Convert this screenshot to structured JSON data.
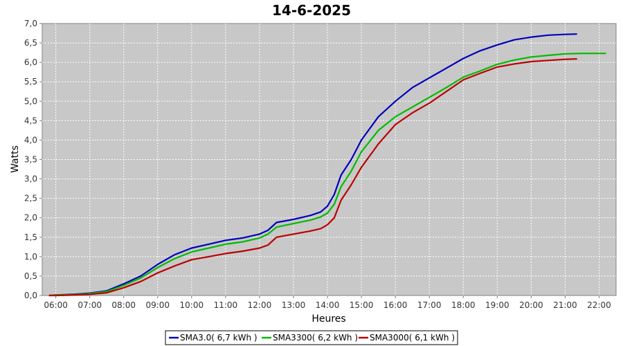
{
  "chart_data": {
    "type": "line",
    "title": "14-6-2025",
    "xlabel": "Heures",
    "ylabel": "Watts",
    "xlim": [
      5.6,
      22.5
    ],
    "ylim": [
      0,
      7
    ],
    "grid": true,
    "legend_position": "bottom",
    "x_ticks": [
      "06:00",
      "07:00",
      "08:00",
      "09:00",
      "10:00",
      "11:00",
      "12:00",
      "13:00",
      "14:00",
      "15:00",
      "16:00",
      "17:00",
      "18:00",
      "19:00",
      "20:00",
      "21:00",
      "22:00"
    ],
    "y_ticks": [
      "0,0",
      "0,5",
      "1,0",
      "1,5",
      "2,0",
      "2,5",
      "3,0",
      "3,5",
      "4,0",
      "4,5",
      "5,0",
      "5,5",
      "6,0",
      "6,5",
      "7,0"
    ],
    "series": [
      {
        "name": "SMA3.0( 6,7 kWh )",
        "color": "#0000bb",
        "points": [
          [
            5.8,
            0.0
          ],
          [
            6.0,
            0.01
          ],
          [
            6.5,
            0.03
          ],
          [
            7.0,
            0.06
          ],
          [
            7.5,
            0.12
          ],
          [
            8.0,
            0.3
          ],
          [
            8.5,
            0.5
          ],
          [
            9.0,
            0.8
          ],
          [
            9.5,
            1.05
          ],
          [
            10.0,
            1.22
          ],
          [
            10.5,
            1.32
          ],
          [
            11.0,
            1.42
          ],
          [
            11.5,
            1.48
          ],
          [
            12.0,
            1.58
          ],
          [
            12.25,
            1.68
          ],
          [
            12.5,
            1.88
          ],
          [
            13.0,
            1.96
          ],
          [
            13.5,
            2.06
          ],
          [
            13.8,
            2.15
          ],
          [
            14.0,
            2.3
          ],
          [
            14.2,
            2.6
          ],
          [
            14.4,
            3.1
          ],
          [
            14.7,
            3.5
          ],
          [
            15.0,
            4.0
          ],
          [
            15.5,
            4.6
          ],
          [
            16.0,
            5.0
          ],
          [
            16.5,
            5.35
          ],
          [
            17.0,
            5.6
          ],
          [
            17.5,
            5.85
          ],
          [
            18.0,
            6.1
          ],
          [
            18.5,
            6.3
          ],
          [
            19.0,
            6.45
          ],
          [
            19.5,
            6.58
          ],
          [
            20.0,
            6.65
          ],
          [
            20.5,
            6.7
          ],
          [
            21.0,
            6.72
          ],
          [
            21.35,
            6.73
          ]
        ]
      },
      {
        "name": "SMA3300( 6,2 kWh )",
        "color": "#00bb00",
        "points": [
          [
            5.8,
            0.0
          ],
          [
            6.0,
            0.01
          ],
          [
            6.5,
            0.02
          ],
          [
            7.0,
            0.05
          ],
          [
            7.5,
            0.1
          ],
          [
            8.0,
            0.26
          ],
          [
            8.5,
            0.45
          ],
          [
            9.0,
            0.72
          ],
          [
            9.5,
            0.95
          ],
          [
            10.0,
            1.12
          ],
          [
            10.5,
            1.22
          ],
          [
            11.0,
            1.32
          ],
          [
            11.5,
            1.38
          ],
          [
            12.0,
            1.48
          ],
          [
            12.25,
            1.58
          ],
          [
            12.5,
            1.76
          ],
          [
            13.0,
            1.85
          ],
          [
            13.5,
            1.94
          ],
          [
            13.8,
            2.02
          ],
          [
            14.0,
            2.12
          ],
          [
            14.2,
            2.35
          ],
          [
            14.4,
            2.8
          ],
          [
            14.7,
            3.2
          ],
          [
            15.0,
            3.7
          ],
          [
            15.5,
            4.25
          ],
          [
            16.0,
            4.6
          ],
          [
            16.5,
            4.85
          ],
          [
            17.0,
            5.1
          ],
          [
            17.5,
            5.35
          ],
          [
            18.0,
            5.62
          ],
          [
            18.5,
            5.78
          ],
          [
            19.0,
            5.95
          ],
          [
            19.5,
            6.06
          ],
          [
            20.0,
            6.14
          ],
          [
            20.5,
            6.18
          ],
          [
            21.0,
            6.22
          ],
          [
            21.5,
            6.23
          ],
          [
            22.2,
            6.23
          ]
        ]
      },
      {
        "name": "SMA3000( 6,1 kWh )",
        "color": "#bb0000",
        "points": [
          [
            5.8,
            0.0
          ],
          [
            6.0,
            0.0
          ],
          [
            6.5,
            0.01
          ],
          [
            7.0,
            0.03
          ],
          [
            7.5,
            0.07
          ],
          [
            8.0,
            0.2
          ],
          [
            8.5,
            0.36
          ],
          [
            9.0,
            0.58
          ],
          [
            9.5,
            0.76
          ],
          [
            10.0,
            0.92
          ],
          [
            10.5,
            1.0
          ],
          [
            11.0,
            1.08
          ],
          [
            11.5,
            1.14
          ],
          [
            12.0,
            1.22
          ],
          [
            12.25,
            1.3
          ],
          [
            12.5,
            1.5
          ],
          [
            13.0,
            1.58
          ],
          [
            13.5,
            1.66
          ],
          [
            13.8,
            1.72
          ],
          [
            14.0,
            1.82
          ],
          [
            14.2,
            2.0
          ],
          [
            14.4,
            2.45
          ],
          [
            14.7,
            2.85
          ],
          [
            15.0,
            3.3
          ],
          [
            15.5,
            3.9
          ],
          [
            16.0,
            4.4
          ],
          [
            16.5,
            4.7
          ],
          [
            17.0,
            4.95
          ],
          [
            17.5,
            5.25
          ],
          [
            18.0,
            5.55
          ],
          [
            18.5,
            5.72
          ],
          [
            19.0,
            5.88
          ],
          [
            19.5,
            5.96
          ],
          [
            20.0,
            6.02
          ],
          [
            20.5,
            6.05
          ],
          [
            21.0,
            6.08
          ],
          [
            21.35,
            6.09
          ]
        ]
      }
    ]
  }
}
